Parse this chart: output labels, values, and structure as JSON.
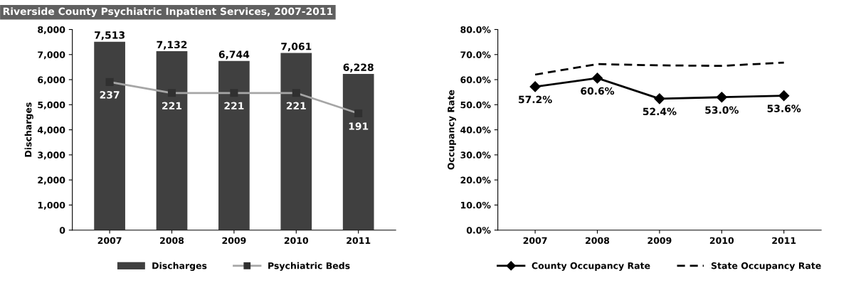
{
  "chart_data": [
    {
      "type": "bar",
      "title": "Riverside County Psychiatric Inpatient Services, 2007-2011",
      "ylabel": "Discharges",
      "categories": [
        "2007",
        "2008",
        "2009",
        "2010",
        "2011"
      ],
      "series": [
        {
          "name": "Discharges",
          "type": "bar",
          "color": "#404040",
          "values": [
            7513,
            7132,
            6744,
            7061,
            6228
          ],
          "value_labels": [
            "7,513",
            "7,132",
            "6,744",
            "7,061",
            "6,228"
          ]
        },
        {
          "name": "Psychiatric Beds",
          "type": "line",
          "axis": "y2",
          "color": "#a6a6a6",
          "values": [
            237,
            221,
            221,
            221,
            191
          ],
          "value_labels": [
            "237",
            "221",
            "221",
            "221",
            "191"
          ]
        }
      ],
      "ylim": [
        0,
        8000
      ],
      "yticks": [
        0,
        {
          "value": 1000,
          "label": "1,000"
        },
        {
          "value": 2000,
          "label": "2,000"
        },
        {
          "value": 3000,
          "label": "3,000"
        },
        {
          "value": 4000,
          "label": "4,000"
        },
        {
          "value": 5000,
          "label": "5,000"
        },
        {
          "value": 6000,
          "label": "6,000"
        },
        {
          "value": 7000,
          "label": "7,000"
        },
        {
          "value": 8000,
          "label": "8,000"
        }
      ],
      "y2lim": [
        20,
        314
      ],
      "marker": "square",
      "legend": "bottom",
      "grid": false
    },
    {
      "type": "line",
      "ylabel": "Occupancy Rate",
      "categories": [
        "2007",
        "2008",
        "2009",
        "2010",
        "2011"
      ],
      "series": [
        {
          "name": "County Occupancy Rate",
          "color": "#000000",
          "marker": "diamond",
          "line_style": "solid",
          "values": [
            57.2,
            60.6,
            52.4,
            53.0,
            53.6
          ],
          "value_labels": [
            "57.2%",
            "60.6%",
            "52.4%",
            "53.0%",
            "53.6%"
          ]
        },
        {
          "name": "State Occupancy Rate",
          "color": "#000000",
          "marker": "none",
          "line_style": "dashed",
          "values": [
            62.0,
            66.2,
            65.7,
            65.5,
            66.8
          ]
        }
      ],
      "ylim": [
        0,
        80
      ],
      "yticks": [
        {
          "value": 0,
          "label": "0.0%"
        },
        {
          "value": 10,
          "label": "10.0%"
        },
        {
          "value": 20,
          "label": "20.0%"
        },
        {
          "value": 30,
          "label": "30.0%"
        },
        {
          "value": 40,
          "label": "40.0%"
        },
        {
          "value": 50,
          "label": "50.0%"
        },
        {
          "value": 60,
          "label": "60.0%"
        },
        {
          "value": 70,
          "label": "70.0%"
        },
        {
          "value": 80,
          "label": "80.0%"
        }
      ],
      "legend": "bottom",
      "grid": false
    }
  ]
}
